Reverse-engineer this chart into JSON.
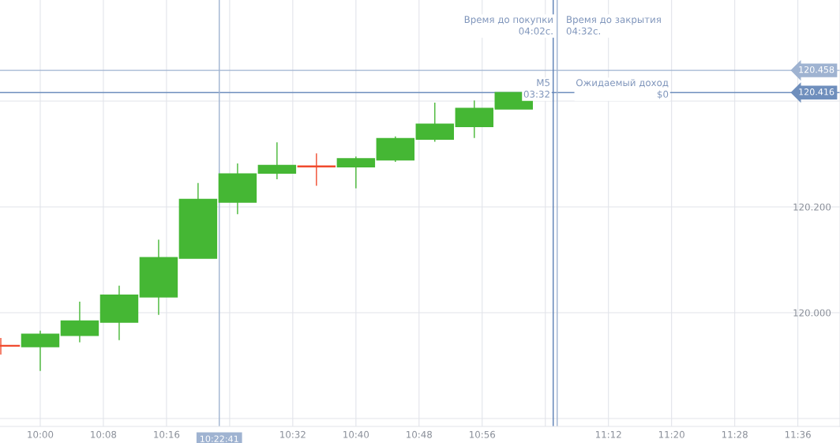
{
  "chart_data": {
    "type": "candlestick",
    "x": [
      9.9167,
      10,
      10.0833,
      10.1667,
      10.25,
      10.3333,
      10.4167,
      10.5,
      10.5833,
      10.6667,
      10.75,
      10.8333,
      10.9167,
      11
    ],
    "ohlc": [
      [
        119.938,
        119.952,
        119.921,
        119.937
      ],
      [
        119.936,
        119.966,
        119.89,
        119.959
      ],
      [
        119.957,
        120.021,
        119.944,
        119.984
      ],
      [
        119.982,
        120.051,
        119.948,
        120.033
      ],
      [
        120.03,
        120.138,
        119.996,
        120.104
      ],
      [
        120.103,
        120.245,
        120.103,
        120.214
      ],
      [
        120.209,
        120.282,
        120.186,
        120.262
      ],
      [
        120.264,
        120.322,
        120.252,
        120.278
      ],
      [
        120.277,
        120.301,
        120.24,
        120.276
      ],
      [
        120.276,
        120.295,
        120.235,
        120.291
      ],
      [
        120.289,
        120.333,
        120.285,
        120.329
      ],
      [
        120.328,
        120.397,
        120.323,
        120.356
      ],
      [
        120.352,
        120.401,
        120.33,
        120.386
      ],
      [
        120.385,
        120.416,
        120.385,
        120.416
      ]
    ],
    "colors": [
      "#f04a2e",
      "#45b734",
      "#45b734",
      "#45b734",
      "#45b734",
      "#45b734",
      "#45b734",
      "#45b734",
      "#f04a2e",
      "#45b734",
      "#45b734",
      "#45b734",
      "#45b734",
      "#45b734"
    ],
    "xlim": [
      9.915,
      11.689
    ],
    "xticks": [
      {
        "value": 10,
        "label": "10:00"
      },
      {
        "value": 10.1333,
        "label": "10:08"
      },
      {
        "value": 10.2667,
        "label": "10:16"
      },
      {
        "value": 10.4,
        "label": null
      },
      {
        "value": 10.5333,
        "label": "10:32"
      },
      {
        "value": 10.6667,
        "label": "10:40"
      },
      {
        "value": 10.8,
        "label": "10:48"
      },
      {
        "value": 10.9333,
        "label": "10:56"
      },
      {
        "value": 11.0667,
        "label": null
      },
      {
        "value": 11.2,
        "label": "11:12"
      },
      {
        "value": 11.3333,
        "label": "11:20"
      },
      {
        "value": 11.4667,
        "label": "11:28"
      },
      {
        "value": 11.6,
        "label": "11:36"
      }
    ],
    "ylim": [
      119.785,
      120.591
    ],
    "yticks": [
      {
        "value": 119.8,
        "label": null
      },
      {
        "value": 120.0,
        "label": "120.000"
      },
      {
        "value": 120.2,
        "label": "120.200"
      },
      {
        "value": 120.4,
        "label": null
      }
    ],
    "grid": true,
    "ref_lines": [
      {
        "axis": "y",
        "value": 120.458,
        "label": "120.458",
        "color": "#9fb3d1"
      },
      {
        "axis": "y",
        "value": 120.416,
        "label": "120.416",
        "color": "#6f8fbd"
      },
      {
        "axis": "x",
        "value": 10.3781,
        "label": "10:22:41",
        "color": "#9fb3d1"
      },
      {
        "axis": "x",
        "value": 11.0833,
        "color": "#5b7fb5"
      },
      {
        "axis": "x",
        "value": 11.0917,
        "color": "#9fb3d1"
      }
    ],
    "annotations": [
      "Время до покупки\n04:02с.",
      "Время до закрытия\n04:32с.",
      "M5\n03:32",
      "Ожидаемый доход\n$0"
    ]
  }
}
